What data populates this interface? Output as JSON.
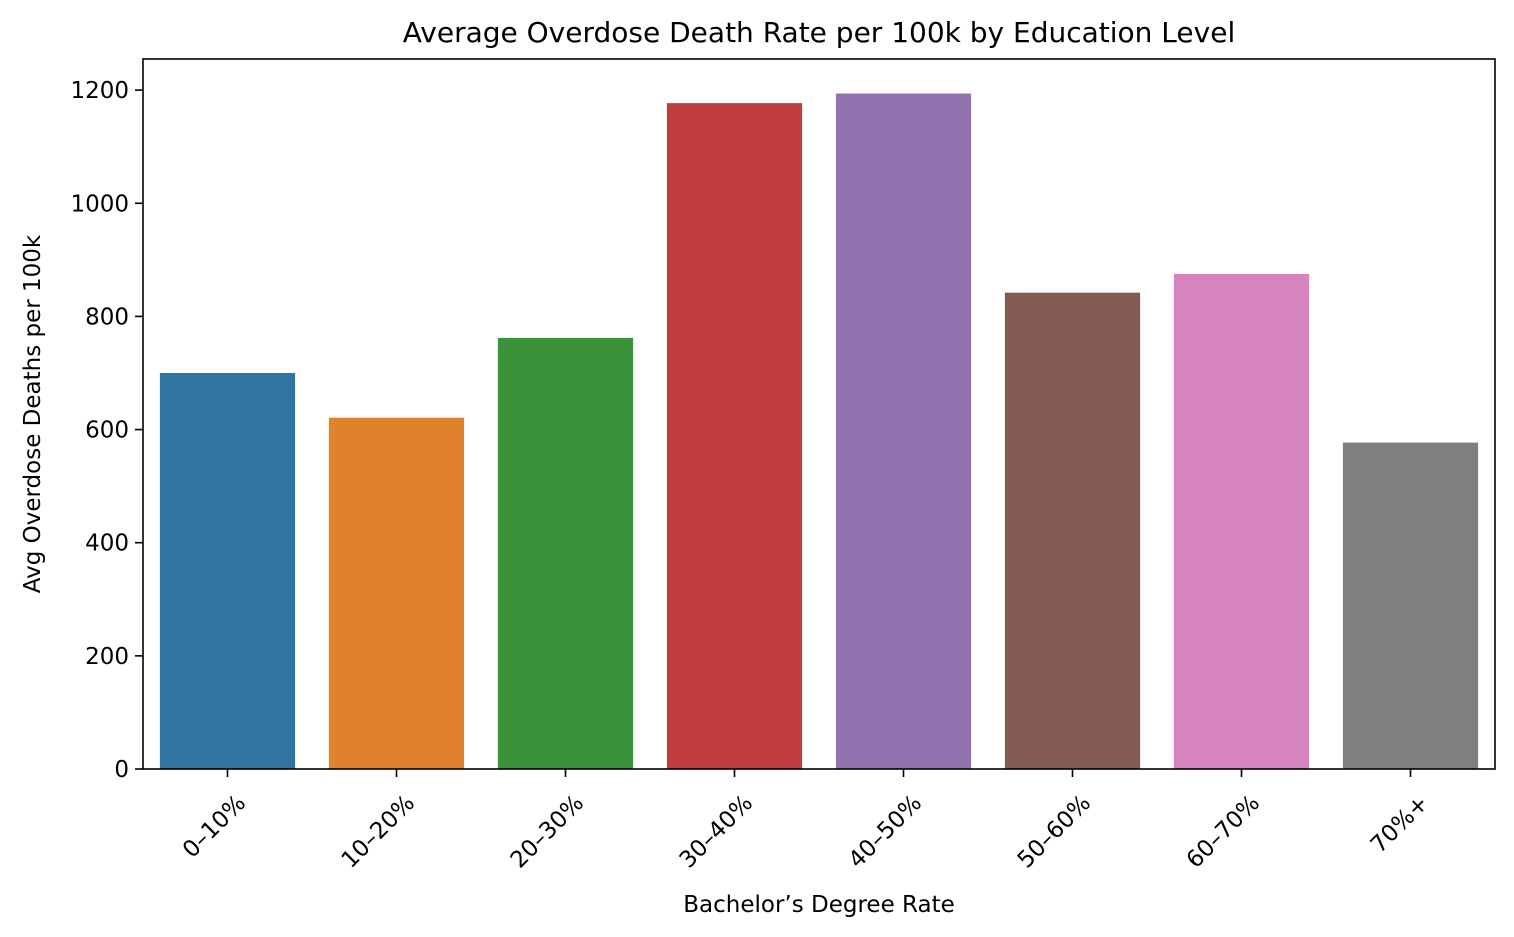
{
  "chart_data": {
    "type": "bar",
    "title": "Average Overdose Death Rate per 100k by Education Level",
    "xlabel": "Bachelor’s Degree Rate",
    "ylabel": "Avg Overdose Deaths per 100k",
    "categories": [
      "0–10%",
      "10–20%",
      "20–30%",
      "30–40%",
      "40–50%",
      "50–60%",
      "60–70%",
      "70%+"
    ],
    "values": [
      700,
      621,
      762,
      1177,
      1194,
      842,
      875,
      577
    ],
    "colors": [
      "#3274a1",
      "#e1812c",
      "#3a923a",
      "#c03d3e",
      "#9372b2",
      "#845b53",
      "#d684bd",
      "#7f7f7f"
    ],
    "yticks": [
      0,
      200,
      400,
      600,
      800,
      1000,
      1200
    ],
    "ylim": [
      0,
      1255
    ],
    "grid": false,
    "legend": "none"
  }
}
